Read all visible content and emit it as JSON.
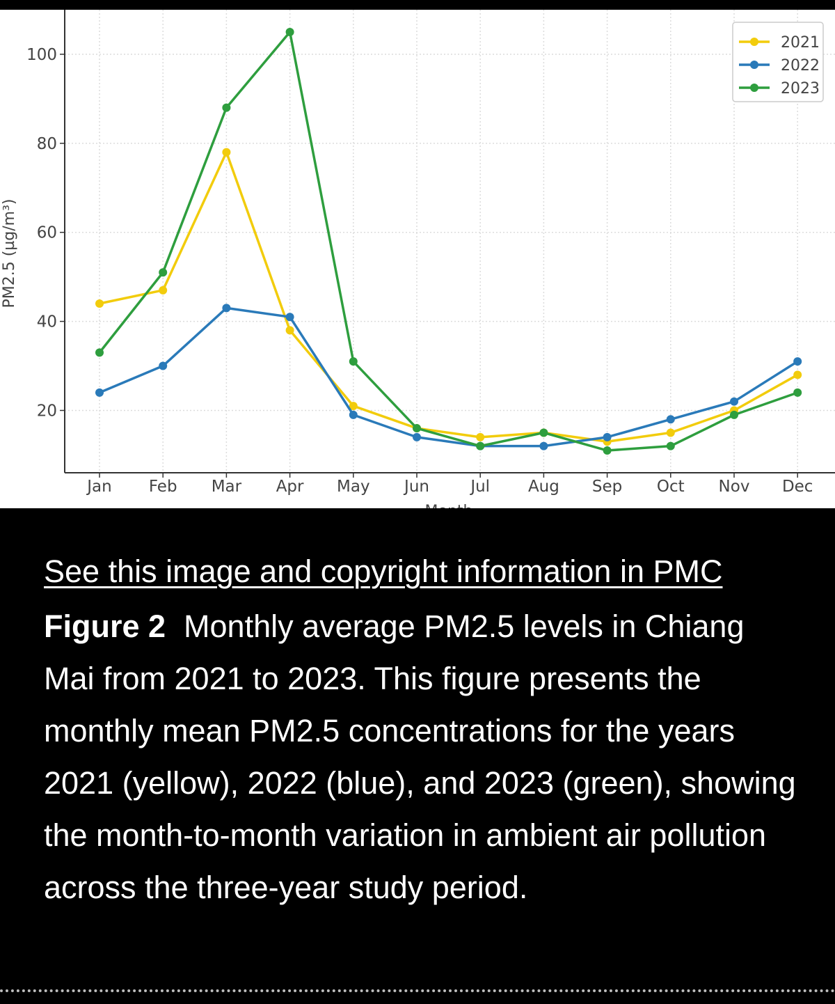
{
  "caption": {
    "link_text": "See this image and copyright information in PMC",
    "figure_label": "Figure 2",
    "text": "Monthly average PM2.5 levels in Chiang Mai from 2021 to 2023. This figure presents the monthly mean PM2.5 concentrations for the years 2021 (yellow), 2022 (blue), and 2023 (green), showing the month-to-month variation in ambient air pollution across the three-year study period."
  },
  "colors": {
    "background": "#000000",
    "caption_text": "#ffffff",
    "plot_background": "#ffffff",
    "grid": "#dcdcdc"
  },
  "chart_data": {
    "type": "line",
    "title": "",
    "xlabel": "Month",
    "ylabel": "PM2.5 (µg/m³)",
    "categories": [
      "Jan",
      "Feb",
      "Mar",
      "Apr",
      "May",
      "Jun",
      "Jul",
      "Aug",
      "Sep",
      "Oct",
      "Nov",
      "Dec"
    ],
    "yticks": [
      20,
      40,
      60,
      80,
      100
    ],
    "ylim": [
      6,
      110
    ],
    "grid": true,
    "legend_position": "top-right",
    "series": [
      {
        "name": "2021",
        "color": "#f2cc0c",
        "values": [
          44,
          47,
          78,
          38,
          21,
          16,
          14,
          15,
          13,
          15,
          20,
          28
        ]
      },
      {
        "name": "2022",
        "color": "#2a7ab9",
        "values": [
          24,
          30,
          43,
          41,
          19,
          14,
          12,
          12,
          14,
          18,
          22,
          31
        ]
      },
      {
        "name": "2023",
        "color": "#2e9e3e",
        "values": [
          33,
          51,
          88,
          105,
          31,
          16,
          12,
          15,
          11,
          12,
          19,
          24
        ]
      }
    ]
  }
}
